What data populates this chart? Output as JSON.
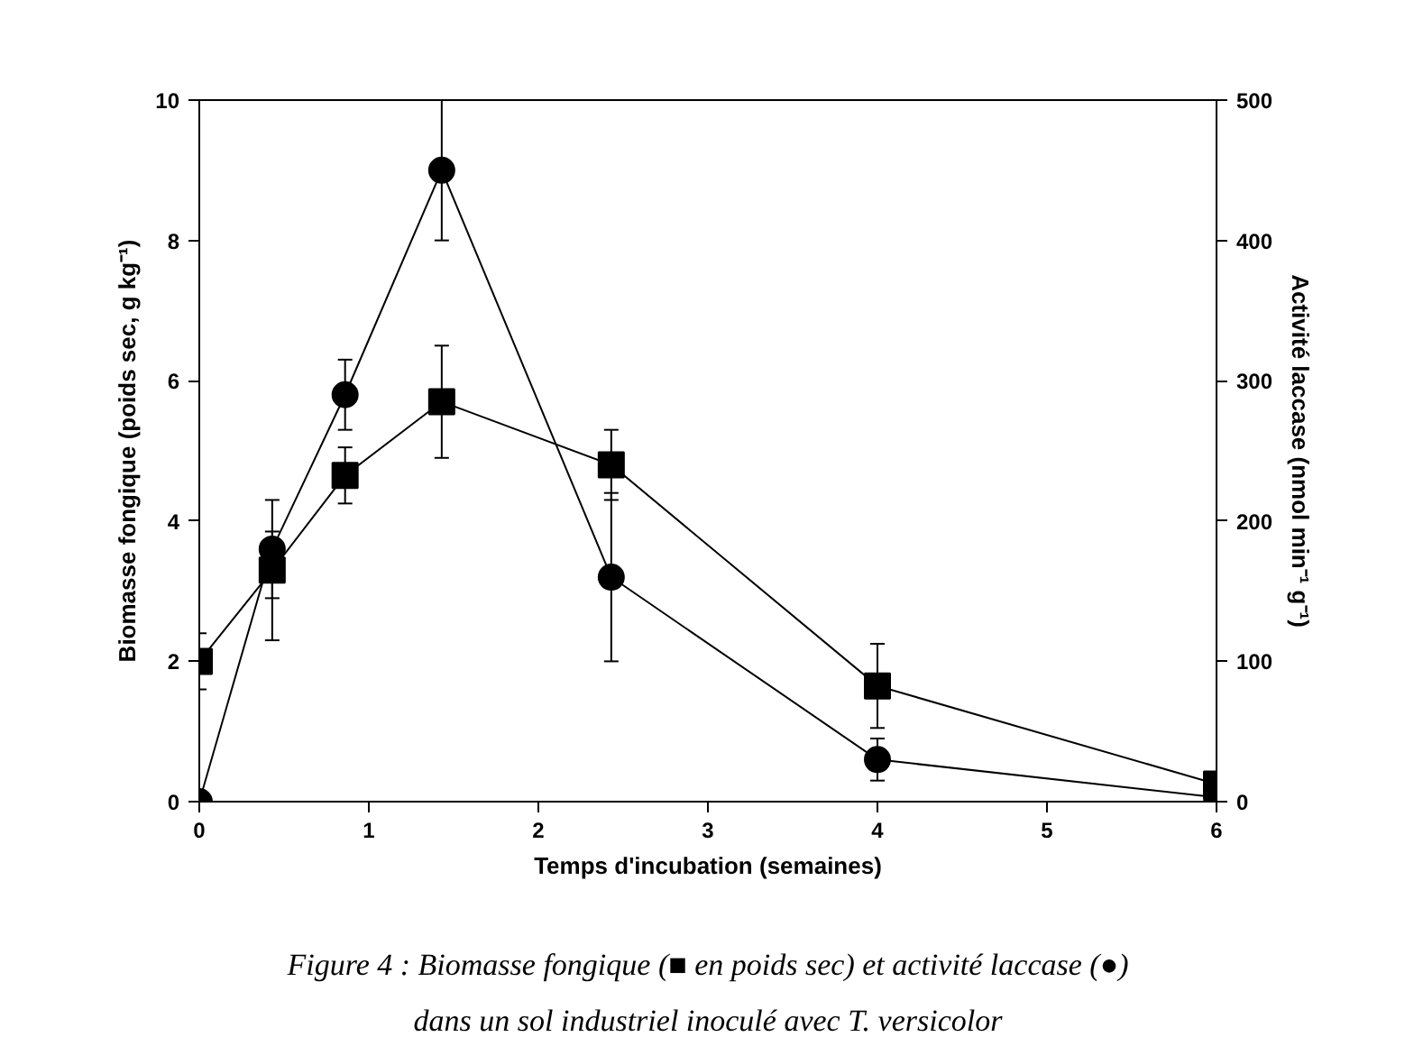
{
  "chart_data": {
    "type": "line",
    "xlabel": "Temps d'incubation (semaines)",
    "ylabel": "Biomasse fongique (poids sec, g kg⁻¹)",
    "y2label": "Activité laccase (nmol min⁻¹ g⁻¹)",
    "x": [
      0,
      0.43,
      0.86,
      1.43,
      2.43,
      4,
      6
    ],
    "series": [
      {
        "color": "#000000",
        "marker": "square",
        "values": [
          2.0,
          3.3,
          4.65,
          5.7,
          4.8,
          1.65,
          0.25
        ],
        "errors": [
          0.4,
          [
            2.3,
            3.85
          ],
          0.4,
          0.8,
          0.5,
          0.6,
          null
        ]
      },
      {
        "color": "#000000",
        "marker": "circle",
        "axis": "y2",
        "values": [
          0,
          180,
          290,
          450,
          160,
          30,
          3
        ],
        "errors": [
          null,
          35,
          25,
          50,
          60,
          15,
          null
        ]
      }
    ],
    "xlim": [
      0,
      6
    ],
    "xticks": [
      0,
      1,
      2,
      3,
      4,
      5,
      6
    ],
    "ylim": [
      0,
      10
    ],
    "yticks": [
      0,
      2,
      4,
      6,
      8,
      10
    ],
    "y2lim": [
      0,
      500
    ],
    "y2ticks": [
      0,
      100,
      200,
      300,
      400,
      500
    ],
    "grid": false,
    "line_style": "solid",
    "annotations": [
      "Figure 4 : Biomasse fongique (■ en poids sec) et activité laccase (●)",
      "dans un sol industriel inoculé avec T. versicolor"
    ]
  }
}
